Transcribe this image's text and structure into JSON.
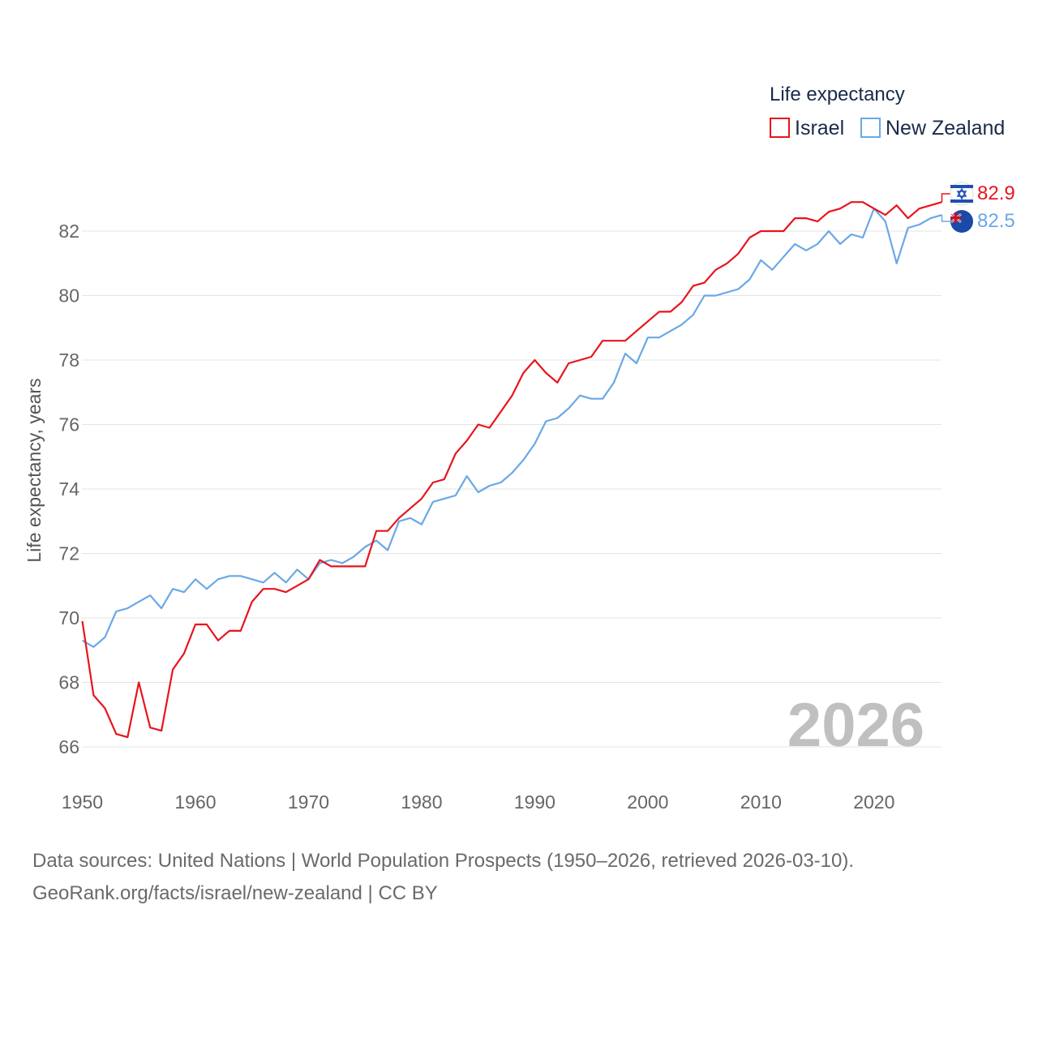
{
  "legend": {
    "title": "Life expectancy",
    "items": [
      {
        "label": "Israel",
        "color": "#e8141c"
      },
      {
        "label": "New Zealand",
        "color": "#6aa8e6"
      }
    ]
  },
  "year_label": "2026",
  "end_labels": {
    "israel": "82.9",
    "new_zealand": "82.5"
  },
  "source": {
    "line1": "Data sources: United Nations | World Population Prospects (1950–2026, retrieved 2026-03-10).",
    "line2": "GeoRank.org/facts/israel/new-zealand | CC BY"
  },
  "chart_data": {
    "type": "line",
    "title": "Life expectancy",
    "xlabel": "",
    "ylabel": "Life expectancy, years",
    "xlim": [
      1950,
      2026
    ],
    "ylim": [
      65.5,
      83.5
    ],
    "x_ticks": [
      1950,
      1960,
      1970,
      1980,
      1990,
      2000,
      2010,
      2020
    ],
    "y_ticks": [
      66,
      68,
      70,
      72,
      74,
      76,
      78,
      80,
      82
    ],
    "grid": true,
    "legend_position": "top-right",
    "x": [
      1950,
      1951,
      1952,
      1953,
      1954,
      1955,
      1956,
      1957,
      1958,
      1959,
      1960,
      1961,
      1962,
      1963,
      1964,
      1965,
      1966,
      1967,
      1968,
      1969,
      1970,
      1971,
      1972,
      1973,
      1974,
      1975,
      1976,
      1977,
      1978,
      1979,
      1980,
      1981,
      1982,
      1983,
      1984,
      1985,
      1986,
      1987,
      1988,
      1989,
      1990,
      1991,
      1992,
      1993,
      1994,
      1995,
      1996,
      1997,
      1998,
      1999,
      2000,
      2001,
      2002,
      2003,
      2004,
      2005,
      2006,
      2007,
      2008,
      2009,
      2010,
      2011,
      2012,
      2013,
      2014,
      2015,
      2016,
      2017,
      2018,
      2019,
      2020,
      2021,
      2022,
      2023,
      2024,
      2025,
      2026
    ],
    "series": [
      {
        "name": "Israel",
        "color": "#e8141c",
        "values": [
          69.9,
          67.6,
          67.2,
          66.4,
          66.3,
          68.0,
          66.6,
          66.5,
          68.4,
          68.9,
          69.8,
          69.8,
          69.3,
          69.6,
          69.6,
          70.5,
          70.9,
          70.9,
          70.8,
          71.0,
          71.2,
          71.8,
          71.6,
          71.6,
          71.6,
          71.6,
          72.7,
          72.7,
          73.1,
          73.4,
          73.7,
          74.2,
          74.3,
          75.1,
          75.5,
          76.0,
          75.9,
          76.4,
          76.9,
          77.6,
          78.0,
          77.6,
          77.3,
          77.9,
          78.0,
          78.1,
          78.6,
          78.6,
          78.6,
          78.9,
          79.2,
          79.5,
          79.5,
          79.8,
          80.3,
          80.4,
          80.8,
          81.0,
          81.3,
          81.8,
          82.0,
          82.0,
          82.0,
          82.4,
          82.4,
          82.3,
          82.6,
          82.7,
          82.9,
          82.9,
          82.7,
          82.5,
          82.8,
          82.4,
          82.7,
          82.8,
          82.9
        ]
      },
      {
        "name": "New Zealand",
        "color": "#6aa8e6",
        "values": [
          69.3,
          69.1,
          69.4,
          70.2,
          70.3,
          70.5,
          70.7,
          70.3,
          70.9,
          70.8,
          71.2,
          70.9,
          71.2,
          71.3,
          71.3,
          71.2,
          71.1,
          71.4,
          71.1,
          71.5,
          71.2,
          71.7,
          71.8,
          71.7,
          71.9,
          72.2,
          72.4,
          72.1,
          73.0,
          73.1,
          72.9,
          73.6,
          73.7,
          73.8,
          74.4,
          73.9,
          74.1,
          74.2,
          74.5,
          74.9,
          75.4,
          76.1,
          76.2,
          76.5,
          76.9,
          76.8,
          76.8,
          77.3,
          78.2,
          77.9,
          78.7,
          78.7,
          78.9,
          79.1,
          79.4,
          80.0,
          80.0,
          80.1,
          80.2,
          80.5,
          81.1,
          80.8,
          81.2,
          81.6,
          81.4,
          81.6,
          82.0,
          81.6,
          81.9,
          81.8,
          82.7,
          82.3,
          81.0,
          82.1,
          82.2,
          82.4,
          82.5
        ]
      }
    ]
  }
}
